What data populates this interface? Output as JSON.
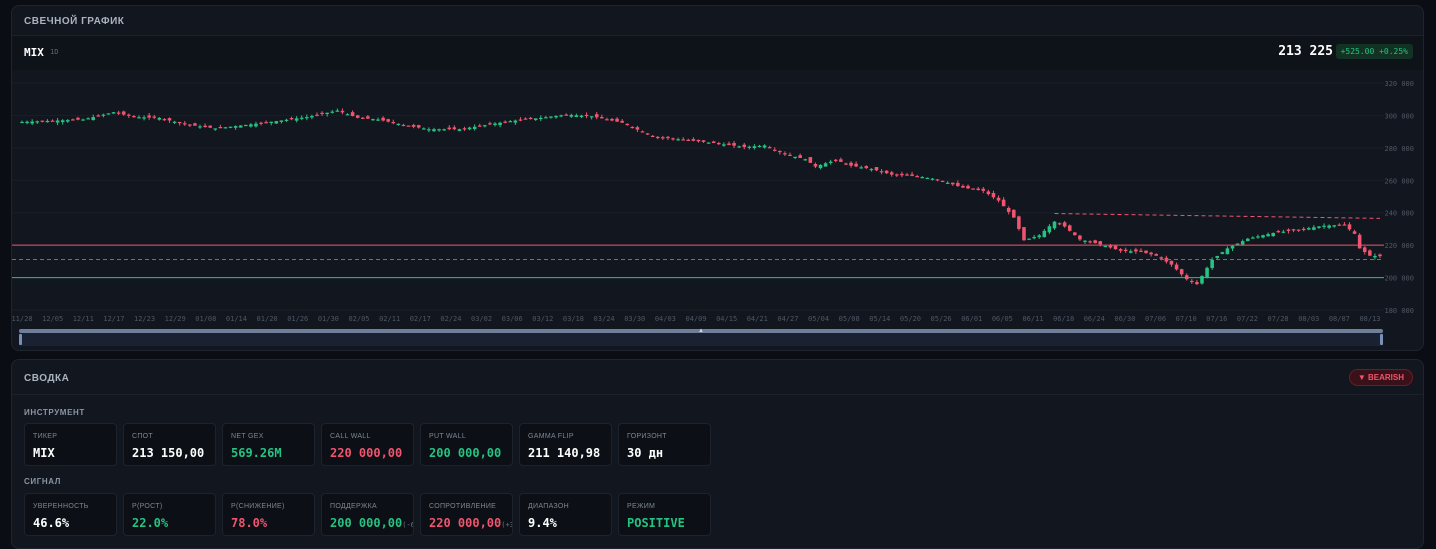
{
  "chart_panel": {
    "title": "СВЕЧНОЙ ГРАФИК",
    "ticker": "MIX",
    "timeframe": "1D",
    "last_price": "213 225",
    "change": "+525.00 +0.25%"
  },
  "chart_data": {
    "type": "candlestick",
    "y_ticks": [
      "320 000",
      "300 000",
      "280 000",
      "260 000",
      "240 000",
      "220 000",
      "200 000",
      "180 000"
    ],
    "ylim": [
      180000,
      320000
    ],
    "x_ticks": [
      "11/28",
      "12/05",
      "12/11",
      "12/17",
      "12/23",
      "12/29",
      "01/08",
      "01/14",
      "01/20",
      "01/26",
      "01/30",
      "02/05",
      "02/11",
      "02/17",
      "02/24",
      "03/02",
      "03/06",
      "03/12",
      "03/18",
      "03/24",
      "03/30",
      "04/03",
      "04/09",
      "04/15",
      "04/21",
      "04/27",
      "05/04",
      "05/08",
      "05/14",
      "05/20",
      "05/26",
      "06/01",
      "06/05",
      "06/11",
      "06/18",
      "06/24",
      "06/30",
      "07/06",
      "07/10",
      "07/16",
      "07/22",
      "07/28",
      "08/03",
      "08/07",
      "08/13"
    ],
    "close_path": [
      [
        0,
        296000
      ],
      [
        12,
        297500
      ],
      [
        18,
        302000
      ],
      [
        22,
        299000
      ],
      [
        27,
        298500
      ],
      [
        32,
        294500
      ],
      [
        38,
        292000
      ],
      [
        45,
        294500
      ],
      [
        50,
        296500
      ],
      [
        56,
        299000
      ],
      [
        62,
        303000
      ],
      [
        66,
        298500
      ],
      [
        70,
        297500
      ],
      [
        76,
        293500
      ],
      [
        80,
        291500
      ],
      [
        86,
        291500
      ],
      [
        90,
        293500
      ],
      [
        96,
        296500
      ],
      [
        102,
        298500
      ],
      [
        107,
        300500
      ],
      [
        112,
        299500
      ],
      [
        118,
        295500
      ],
      [
        124,
        287000
      ],
      [
        130,
        285000
      ],
      [
        136,
        283000
      ],
      [
        142,
        280500
      ],
      [
        146,
        281500
      ],
      [
        150,
        276000
      ],
      [
        154,
        273000
      ],
      [
        156,
        268500
      ],
      [
        160,
        272500
      ],
      [
        163,
        269000
      ],
      [
        167,
        267000
      ],
      [
        171,
        263500
      ],
      [
        176,
        262500
      ],
      [
        180,
        260500
      ],
      [
        185,
        255500
      ],
      [
        189,
        253500
      ],
      [
        192,
        247500
      ],
      [
        195,
        237000
      ],
      [
        197,
        223000
      ],
      [
        200,
        226000
      ],
      [
        203,
        234500
      ],
      [
        205,
        231500
      ],
      [
        208,
        223500
      ],
      [
        212,
        220500
      ],
      [
        216,
        216500
      ],
      [
        220,
        216000
      ],
      [
        223,
        213500
      ],
      [
        226,
        208000
      ],
      [
        229,
        199000
      ],
      [
        231,
        196000
      ],
      [
        234,
        211000
      ],
      [
        237,
        218000
      ],
      [
        241,
        224000
      ],
      [
        246,
        227500
      ],
      [
        252,
        230000
      ],
      [
        256,
        232000
      ],
      [
        260,
        232500
      ],
      [
        262,
        227000
      ],
      [
        263,
        218000
      ],
      [
        265,
        213500
      ],
      [
        267,
        213225
      ]
    ],
    "levels": [
      {
        "name": "Put Wall",
        "value": 200000,
        "color": "#26c281",
        "style": "solid"
      },
      {
        "name": "Call Wall",
        "value": 220000,
        "color": "#f0546e",
        "style": "solid"
      },
      {
        "name": "Gamma Flip",
        "value": 211140.98,
        "color": "#4a76c9",
        "style": "dashed"
      }
    ],
    "trendline": {
      "from": [
        203,
        239500
      ],
      "to": [
        267,
        236500
      ],
      "color": "#f0546e",
      "style": "dashed"
    },
    "colors": {
      "up": "#26c281",
      "down": "#f0546e",
      "grid": "#1a1f28",
      "tick": "#4e5866"
    }
  },
  "summary": {
    "title": "СВОДКА",
    "bias": "▼ BEARISH",
    "instrument_label": "ИНСТРУМЕНТ",
    "instrument": [
      {
        "label": "ТИКЕР",
        "value": "MIX",
        "tone": "white"
      },
      {
        "label": "СПОТ",
        "value": "213 150,00",
        "tone": "white"
      },
      {
        "label": "NET GEX",
        "value": "569.26M",
        "tone": "green"
      },
      {
        "label": "CALL WALL",
        "value": "220 000,00",
        "tone": "red"
      },
      {
        "label": "PUT WALL",
        "value": "200 000,00",
        "tone": "green"
      },
      {
        "label": "GAMMA FLIP",
        "value": "211 140,98",
        "tone": "white"
      },
      {
        "label": "ГОРИЗОНТ",
        "value": "30 дн",
        "tone": "white"
      }
    ],
    "signal_label": "СИГНАЛ",
    "signal": [
      {
        "label": "УВЕРЕННОСТЬ",
        "value": "46.6%",
        "tone": "white"
      },
      {
        "label": "P(РОСТ)",
        "value": "22.0%",
        "tone": "green"
      },
      {
        "label": "P(СНИЖЕНИЕ)",
        "value": "78.0%",
        "tone": "red"
      },
      {
        "label": "ПОДДЕРЖКА",
        "value": "200 000,00",
        "note": "(-6.2%)",
        "tone": "green"
      },
      {
        "label": "СОПРОТИВЛЕНИЕ",
        "value": "220 000,00",
        "note": "(+3.2%)",
        "tone": "red"
      },
      {
        "label": "ДИАПАЗОН",
        "value": "9.4%",
        "tone": "white"
      },
      {
        "label": "РЕЖИМ",
        "value": "POSITIVE",
        "tone": "green"
      }
    ]
  }
}
